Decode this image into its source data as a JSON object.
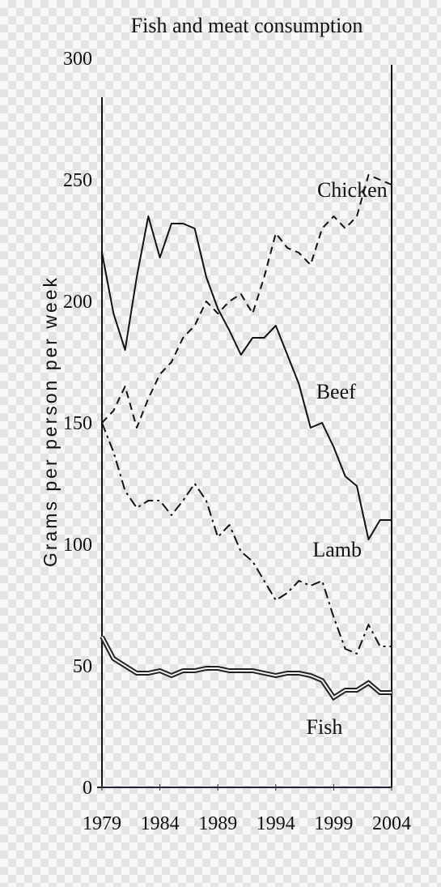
{
  "chart_data": {
    "type": "line",
    "title": "Fish and meat consumption",
    "xlabel": "",
    "ylabel": "Grams per person per week",
    "xlim": [
      1979,
      2004
    ],
    "ylim": [
      0,
      300
    ],
    "x_ticks": [
      "1979",
      "1984",
      "1989",
      "1994",
      "1999",
      "2004"
    ],
    "y_ticks": [
      "0",
      "50",
      "100",
      "150",
      "200",
      "250",
      "300"
    ],
    "x": [
      1979,
      1980,
      1981,
      1982,
      1983,
      1984,
      1985,
      1986,
      1987,
      1988,
      1989,
      1990,
      1991,
      1992,
      1993,
      1994,
      1995,
      1996,
      1997,
      1998,
      1999,
      2000,
      2001,
      2002,
      2003,
      2004
    ],
    "series": [
      {
        "name": "Chicken",
        "style": "dashed",
        "values": [
          150,
          155,
          165,
          148,
          160,
          170,
          175,
          185,
          190,
          200,
          195,
          200,
          203,
          195,
          210,
          228,
          222,
          220,
          215,
          230,
          235,
          230,
          235,
          252,
          250,
          248
        ]
      },
      {
        "name": "Beef",
        "style": "solid",
        "values": [
          220,
          195,
          180,
          210,
          235,
          218,
          232,
          232,
          230,
          210,
          197,
          188,
          178,
          185,
          185,
          190,
          178,
          166,
          148,
          150,
          140,
          128,
          124,
          102,
          110,
          110
        ]
      },
      {
        "name": "Lamb",
        "style": "dash-dot",
        "values": [
          150,
          138,
          122,
          115,
          118,
          118,
          112,
          118,
          125,
          118,
          103,
          108,
          97,
          93,
          85,
          77,
          80,
          85,
          83,
          85,
          70,
          57,
          55,
          67,
          58,
          58
        ]
      },
      {
        "name": "Fish",
        "style": "double",
        "values": [
          62,
          53,
          50,
          47,
          47,
          48,
          46,
          48,
          48,
          49,
          49,
          48,
          48,
          48,
          47,
          46,
          47,
          47,
          46,
          44,
          37,
          40,
          40,
          43,
          39,
          39
        ]
      }
    ]
  }
}
